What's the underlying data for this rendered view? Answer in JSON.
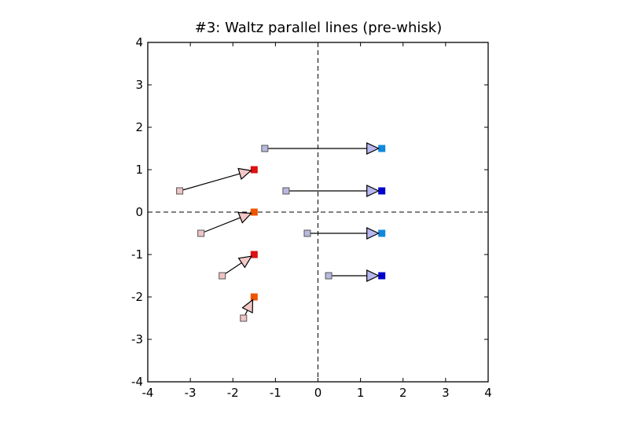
{
  "chart_data": {
    "type": "scatter",
    "title": "#3: Waltz parallel lines (pre-whisk)",
    "xlabel": "",
    "ylabel": "",
    "xlim": [
      -4,
      4
    ],
    "ylim": [
      -4,
      4
    ],
    "xticks": [
      -4,
      -3,
      -2,
      -1,
      0,
      1,
      2,
      3,
      4
    ],
    "yticks": [
      -4,
      -3,
      -2,
      -1,
      0,
      1,
      2,
      3,
      4
    ],
    "xtick_labels": [
      "-4",
      "-3",
      "-2",
      "-1",
      "0",
      "1",
      "2",
      "3",
      "4"
    ],
    "ytick_labels": [
      "-4",
      "-3",
      "-2",
      "-1",
      "0",
      "1",
      "2",
      "3",
      "4"
    ],
    "grid": false,
    "reference_lines": [
      {
        "axis": "x",
        "value": 0,
        "style": "dashed"
      },
      {
        "axis": "y",
        "value": 0,
        "style": "dashed"
      }
    ],
    "series": [
      {
        "color_start": "#eec4c4",
        "arrow_fill": "#f4c8c8",
        "arrows": [
          {
            "x0": -3.25,
            "y0": 0.5,
            "x1": -1.5,
            "y1": 1.0,
            "end_color": "#dd1111"
          },
          {
            "x0": -2.75,
            "y0": -0.5,
            "x1": -1.5,
            "y1": 0.0,
            "end_color": "#ee5500"
          },
          {
            "x0": -2.25,
            "y0": -1.5,
            "x1": -1.5,
            "y1": -1.0,
            "end_color": "#dd1111"
          },
          {
            "x0": -1.75,
            "y0": -2.5,
            "x1": -1.5,
            "y1": -2.0,
            "end_color": "#ee5500"
          }
        ]
      },
      {
        "color_start": "#b8b8e0",
        "arrow_fill": "#b8b8f0",
        "arrows": [
          {
            "x0": -1.25,
            "y0": 1.5,
            "x1": 1.5,
            "y1": 1.5,
            "end_color": "#1188dd"
          },
          {
            "x0": -0.75,
            "y0": 0.5,
            "x1": 1.5,
            "y1": 0.5,
            "end_color": "#0000cc"
          },
          {
            "x0": -0.25,
            "y0": -0.5,
            "x1": 1.5,
            "y1": -0.5,
            "end_color": "#1188dd"
          },
          {
            "x0": 0.25,
            "y0": -1.5,
            "x1": 1.5,
            "y1": -1.5,
            "end_color": "#0000cc"
          }
        ]
      }
    ]
  }
}
